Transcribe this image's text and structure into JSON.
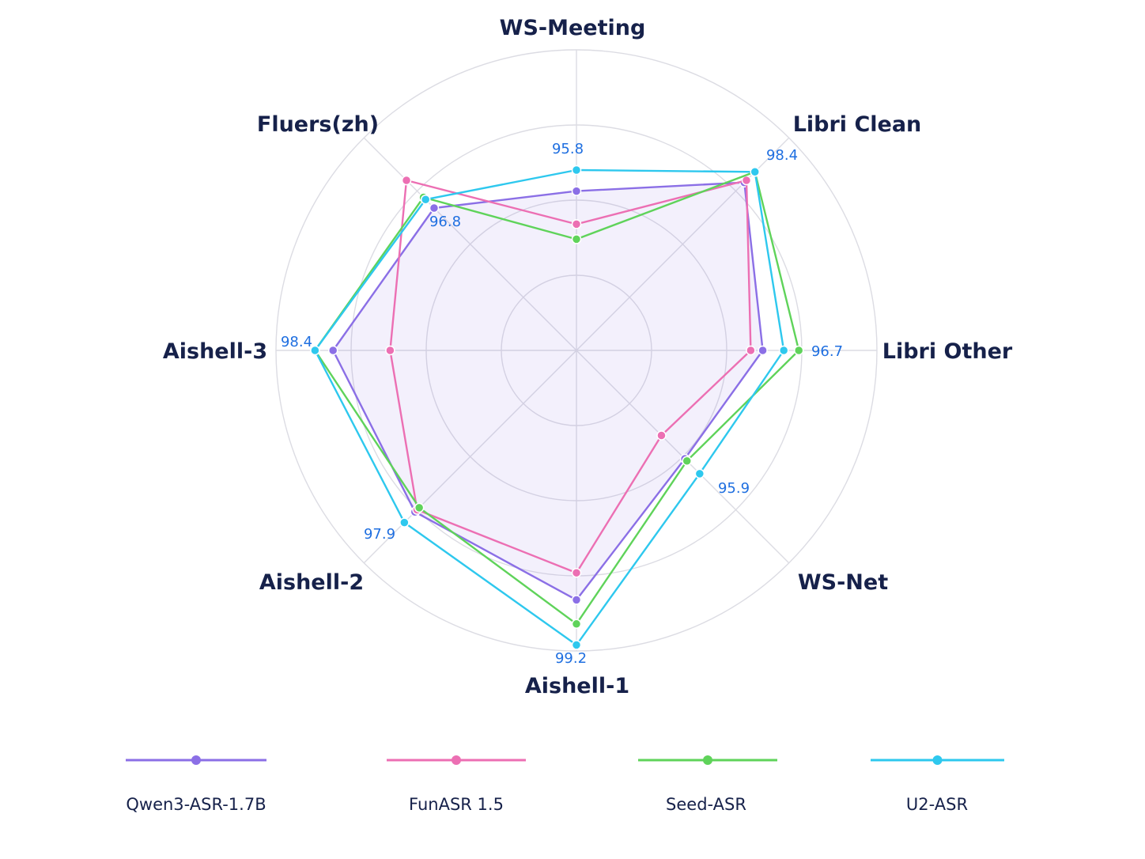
{
  "chart_data": {
    "type": "radar",
    "axes": [
      "WS-Meeting",
      "Libri Clean",
      "Libri Other",
      "WS-Net",
      "Aishell-1",
      "Aishell-2",
      "Aishell-3",
      "Fluers(zh)"
    ],
    "series": [
      {
        "name": "Qwen3-ASR-1.7B",
        "color": "#8b6fe6",
        "values": [
          0.53,
          0.79,
          0.62,
          0.51,
          0.83,
          0.76,
          0.81,
          0.67
        ],
        "fill": true
      },
      {
        "name": "FunASR 1.5",
        "color": "#ec6fb3",
        "values": [
          0.42,
          0.8,
          0.58,
          0.4,
          0.74,
          0.75,
          0.62,
          0.8
        ],
        "fill": false
      },
      {
        "name": "Seed-ASR",
        "color": "#5fd35a",
        "values": [
          0.37,
          0.84,
          0.74,
          0.52,
          0.91,
          0.74,
          0.87,
          0.72
        ],
        "fill": false
      },
      {
        "name": "U2-ASR",
        "color": "#2ec8ee",
        "values": [
          0.6,
          0.84,
          0.69,
          0.58,
          0.98,
          0.81,
          0.87,
          0.71
        ],
        "fill": false
      }
    ],
    "value_labels": [
      {
        "axis": "WS-Meeting",
        "text": "95.8"
      },
      {
        "axis": "Libri Clean",
        "text": "98.4"
      },
      {
        "axis": "Libri Other",
        "text": "96.7"
      },
      {
        "axis": "WS-Net",
        "text": "95.9"
      },
      {
        "axis": "Aishell-1",
        "text": "99.2"
      },
      {
        "axis": "Aishell-2",
        "text": "97.9"
      },
      {
        "axis": "Aishell-3",
        "text": "98.4"
      },
      {
        "axis": "Fluers(zh)",
        "text": "96.8"
      }
    ],
    "grid": true,
    "legend_position": "bottom",
    "title": ""
  }
}
